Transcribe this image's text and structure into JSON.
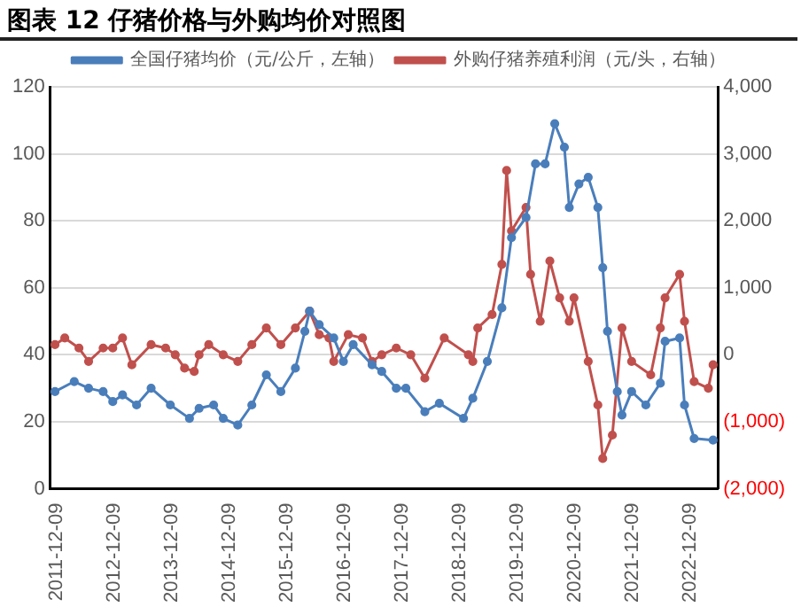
{
  "chart_data": {
    "type": "line",
    "title": "图表 12 仔猪价格与外购均价对照图",
    "series": [
      {
        "name": "全国仔猪均价（元/公斤，左轴）",
        "color": "#4a7ebb",
        "axis": "y",
        "x": [
          "2011-12",
          "2012-04",
          "2012-07",
          "2012-10",
          "2012-12",
          "2013-02",
          "2013-05",
          "2013-08",
          "2013-12",
          "2014-04",
          "2014-06",
          "2014-09",
          "2014-11",
          "2015-02",
          "2015-05",
          "2015-08",
          "2015-11",
          "2016-02",
          "2016-04",
          "2016-05",
          "2016-07",
          "2016-10",
          "2016-12",
          "2017-02",
          "2017-06",
          "2017-08",
          "2017-11",
          "2018-01",
          "2018-05",
          "2018-08",
          "2019-01",
          "2019-03",
          "2019-06",
          "2019-09",
          "2019-11",
          "2020-02",
          "2020-04",
          "2020-06",
          "2020-08",
          "2020-10",
          "2020-11",
          "2021-01",
          "2021-03",
          "2021-05",
          "2021-06",
          "2021-07",
          "2021-09",
          "2021-10",
          "2021-12",
          "2022-03",
          "2022-06",
          "2022-07",
          "2022-10",
          "2022-11",
          "2023-01",
          "2023-05"
        ],
        "values": [
          29,
          32,
          30,
          29,
          26,
          28,
          25,
          30,
          25,
          21,
          24,
          25,
          21,
          19,
          25,
          34,
          29,
          36,
          47,
          53,
          49,
          45,
          38,
          43,
          37,
          35,
          30,
          30,
          23,
          25.5,
          21,
          27,
          38,
          54,
          75,
          81,
          97,
          97,
          109,
          102,
          84,
          91,
          93,
          84,
          66,
          47,
          29,
          22,
          29,
          25,
          31.5,
          44,
          45,
          25,
          15,
          14.5
        ]
      },
      {
        "name": "外购仔猪养殖利润（元/头，右轴）",
        "color": "#c0504d",
        "axis": "y2",
        "x": [
          "2011-12",
          "2012-02",
          "2012-05",
          "2012-07",
          "2012-10",
          "2012-12",
          "2013-02",
          "2013-04",
          "2013-08",
          "2013-11",
          "2014-01",
          "2014-03",
          "2014-05",
          "2014-06",
          "2014-08",
          "2014-11",
          "2015-02",
          "2015-05",
          "2015-08",
          "2015-11",
          "2016-02",
          "2016-05",
          "2016-07",
          "2016-09",
          "2016-10",
          "2017-01",
          "2017-04",
          "2017-06",
          "2017-08",
          "2017-11",
          "2018-02",
          "2018-05",
          "2018-09",
          "2019-02",
          "2019-03",
          "2019-04",
          "2019-07",
          "2019-09",
          "2019-10",
          "2019-11",
          "2020-02",
          "2020-03",
          "2020-05",
          "2020-07",
          "2020-09",
          "2020-11",
          "2020-12",
          "2021-03",
          "2021-05",
          "2021-06",
          "2021-08",
          "2021-10",
          "2021-12",
          "2022-04",
          "2022-06",
          "2022-07",
          "2022-10",
          "2022-11",
          "2023-01",
          "2023-04",
          "2023-05"
        ],
        "values": [
          150,
          250,
          100,
          -100,
          100,
          100,
          250,
          -150,
          150,
          100,
          0,
          -200,
          -250,
          0,
          150,
          0,
          -100,
          150,
          400,
          150,
          400,
          650,
          300,
          250,
          -100,
          300,
          250,
          -100,
          0,
          100,
          0,
          -350,
          250,
          0,
          -100,
          400,
          600,
          1350,
          2750,
          1850,
          2200,
          1200,
          500,
          1400,
          850,
          500,
          850,
          -100,
          -750,
          -1550,
          -1200,
          400,
          -100,
          -300,
          400,
          850,
          1200,
          500,
          -400,
          -500,
          -150
        ]
      }
    ],
    "xlim": [
      "2011-11",
      "2023-06"
    ],
    "xticks": [
      "2011-12-09",
      "2012-12-09",
      "2013-12-09",
      "2014-12-09",
      "2015-12-09",
      "2016-12-09",
      "2017-12-09",
      "2018-12-09",
      "2019-12-09",
      "2020-12-09",
      "2021-12-09",
      "2022-12-09"
    ],
    "ylim": [
      0,
      120
    ],
    "yticks": [
      0,
      20,
      40,
      60,
      80,
      100,
      120
    ],
    "y2lim": [
      -2000,
      4000
    ],
    "y2ticks": [
      {
        "value": -2000,
        "label": "(2,000)"
      },
      {
        "value": -1000,
        "label": "(1,000)"
      },
      {
        "value": 0,
        "label": "0"
      },
      {
        "value": 1000,
        "label": "1,000"
      },
      {
        "value": 2000,
        "label": "2,000"
      },
      {
        "value": 3000,
        "label": "3,000"
      },
      {
        "value": 4000,
        "label": "4,000"
      }
    ],
    "grid": "y",
    "legend": "top",
    "marker": "circle",
    "line_style": "solid"
  }
}
